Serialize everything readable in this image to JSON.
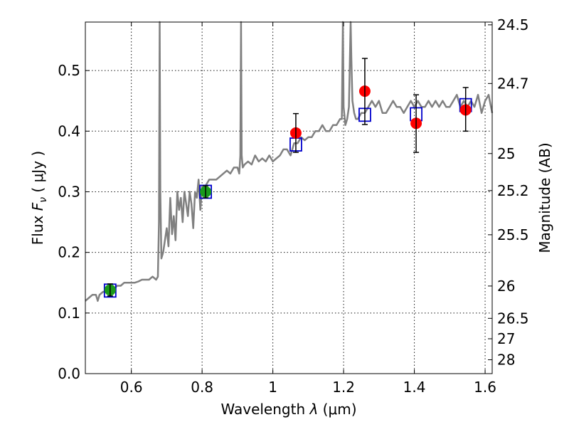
{
  "chart_data": {
    "type": "scatter",
    "xlabel_prefix": "Wavelength  ",
    "xlabel_symbol": "λ",
    "xlabel_unit": " (μm)",
    "ylabel_prefix": "Flux  ",
    "ylabel_symbol": "F",
    "ylabel_sub": "ν",
    "ylabel_unit": "  ( μJy )",
    "y2label": "Magnitude (AB)",
    "xlim": [
      0.47,
      1.62
    ],
    "ylim": [
      0.0,
      0.58
    ],
    "grid": true,
    "x_ticks": [
      0.6,
      0.8,
      1.0,
      1.2,
      1.4,
      1.6
    ],
    "x_tick_labels": [
      "0.6",
      "0.8",
      "1",
      "1.2",
      "1.4",
      "1.6"
    ],
    "y_ticks": [
      0.0,
      0.1,
      0.2,
      0.3,
      0.4,
      0.5
    ],
    "y_tick_labels": [
      "0.0",
      "0.1",
      "0.2",
      "0.3",
      "0.4",
      "0.5"
    ],
    "y2_ticks": [
      {
        "label": "24.5",
        "mag": 24.5
      },
      {
        "label": "24.7",
        "mag": 24.7
      },
      {
        "label": "25",
        "mag": 25.0
      },
      {
        "label": "25.2",
        "mag": 25.2
      },
      {
        "label": "25.5",
        "mag": 25.5
      },
      {
        "label": "26",
        "mag": 26.0
      },
      {
        "label": "26.5",
        "mag": 26.5
      },
      {
        "label": "27",
        "mag": 27.0
      },
      {
        "label": "28",
        "mag": 28.0
      }
    ],
    "series": [
      {
        "name": "model spectrum",
        "kind": "line",
        "color": "#808080",
        "x": [
          0.47,
          0.48,
          0.49,
          0.5,
          0.505,
          0.51,
          0.52,
          0.53,
          0.54,
          0.55,
          0.56,
          0.57,
          0.58,
          0.59,
          0.6,
          0.61,
          0.62,
          0.63,
          0.64,
          0.65,
          0.66,
          0.67,
          0.675,
          0.678,
          0.68,
          0.682,
          0.685,
          0.69,
          0.695,
          0.7,
          0.705,
          0.71,
          0.715,
          0.72,
          0.725,
          0.73,
          0.735,
          0.74,
          0.745,
          0.75,
          0.755,
          0.76,
          0.765,
          0.77,
          0.775,
          0.78,
          0.785,
          0.79,
          0.795,
          0.8,
          0.81,
          0.82,
          0.83,
          0.84,
          0.85,
          0.86,
          0.87,
          0.88,
          0.89,
          0.9,
          0.905,
          0.908,
          0.91,
          0.912,
          0.915,
          0.92,
          0.93,
          0.94,
          0.95,
          0.96,
          0.97,
          0.98,
          0.99,
          1.0,
          1.01,
          1.02,
          1.03,
          1.04,
          1.05,
          1.06,
          1.07,
          1.08,
          1.09,
          1.1,
          1.11,
          1.12,
          1.13,
          1.14,
          1.15,
          1.16,
          1.17,
          1.18,
          1.19,
          1.195,
          1.198,
          1.2,
          1.205,
          1.21,
          1.215,
          1.22,
          1.222,
          1.225,
          1.23,
          1.235,
          1.24,
          1.25,
          1.26,
          1.27,
          1.28,
          1.29,
          1.3,
          1.31,
          1.32,
          1.33,
          1.34,
          1.35,
          1.36,
          1.37,
          1.38,
          1.39,
          1.4,
          1.41,
          1.42,
          1.43,
          1.44,
          1.45,
          1.46,
          1.47,
          1.48,
          1.49,
          1.5,
          1.51,
          1.52,
          1.53,
          1.54,
          1.55,
          1.56,
          1.57,
          1.58,
          1.59,
          1.6,
          1.61,
          1.62
        ],
        "y": [
          0.12,
          0.125,
          0.13,
          0.13,
          0.12,
          0.13,
          0.135,
          0.135,
          0.14,
          0.14,
          0.145,
          0.145,
          0.15,
          0.15,
          0.15,
          0.15,
          0.152,
          0.155,
          0.155,
          0.155,
          0.16,
          0.155,
          0.16,
          0.25,
          0.58,
          0.3,
          0.19,
          0.2,
          0.22,
          0.24,
          0.21,
          0.29,
          0.23,
          0.26,
          0.22,
          0.3,
          0.27,
          0.29,
          0.25,
          0.3,
          0.28,
          0.26,
          0.3,
          0.28,
          0.24,
          0.3,
          0.29,
          0.32,
          0.27,
          0.31,
          0.31,
          0.32,
          0.32,
          0.32,
          0.325,
          0.33,
          0.335,
          0.33,
          0.34,
          0.34,
          0.33,
          0.36,
          0.58,
          0.36,
          0.34,
          0.345,
          0.35,
          0.345,
          0.36,
          0.35,
          0.355,
          0.35,
          0.36,
          0.35,
          0.355,
          0.36,
          0.37,
          0.37,
          0.36,
          0.38,
          0.38,
          0.39,
          0.385,
          0.39,
          0.39,
          0.4,
          0.4,
          0.41,
          0.4,
          0.4,
          0.41,
          0.41,
          0.42,
          0.42,
          0.58,
          0.44,
          0.41,
          0.42,
          0.44,
          0.58,
          0.52,
          0.45,
          0.43,
          0.42,
          0.42,
          0.43,
          0.43,
          0.44,
          0.45,
          0.44,
          0.45,
          0.43,
          0.43,
          0.44,
          0.45,
          0.44,
          0.44,
          0.43,
          0.44,
          0.45,
          0.44,
          0.45,
          0.44,
          0.44,
          0.45,
          0.44,
          0.45,
          0.44,
          0.45,
          0.44,
          0.44,
          0.45,
          0.46,
          0.44,
          0.45,
          0.44,
          0.45,
          0.44,
          0.46,
          0.43,
          0.45,
          0.46,
          0.43
        ]
      },
      {
        "name": "photometry (green)",
        "kind": "points",
        "color": "#1a9a1a",
        "x": [
          0.54,
          0.81
        ],
        "y": [
          0.138,
          0.3
        ],
        "err": [
          0.01,
          0.01
        ]
      },
      {
        "name": "photometry (red)",
        "kind": "points",
        "color": "#ff0000",
        "x": [
          1.065,
          1.26,
          1.405,
          1.545
        ],
        "y": [
          0.397,
          0.466,
          0.413,
          0.435
        ],
        "err_low": [
          0.032,
          0.055,
          0.048,
          0.035
        ],
        "err_high": [
          0.032,
          0.054,
          0.047,
          0.037
        ]
      },
      {
        "name": "model photometry",
        "kind": "squares",
        "color": "#0000cc",
        "x": [
          0.54,
          0.81,
          1.065,
          1.26,
          1.405,
          1.545
        ],
        "y": [
          0.137,
          0.3,
          0.378,
          0.427,
          0.428,
          0.443
        ]
      }
    ]
  }
}
